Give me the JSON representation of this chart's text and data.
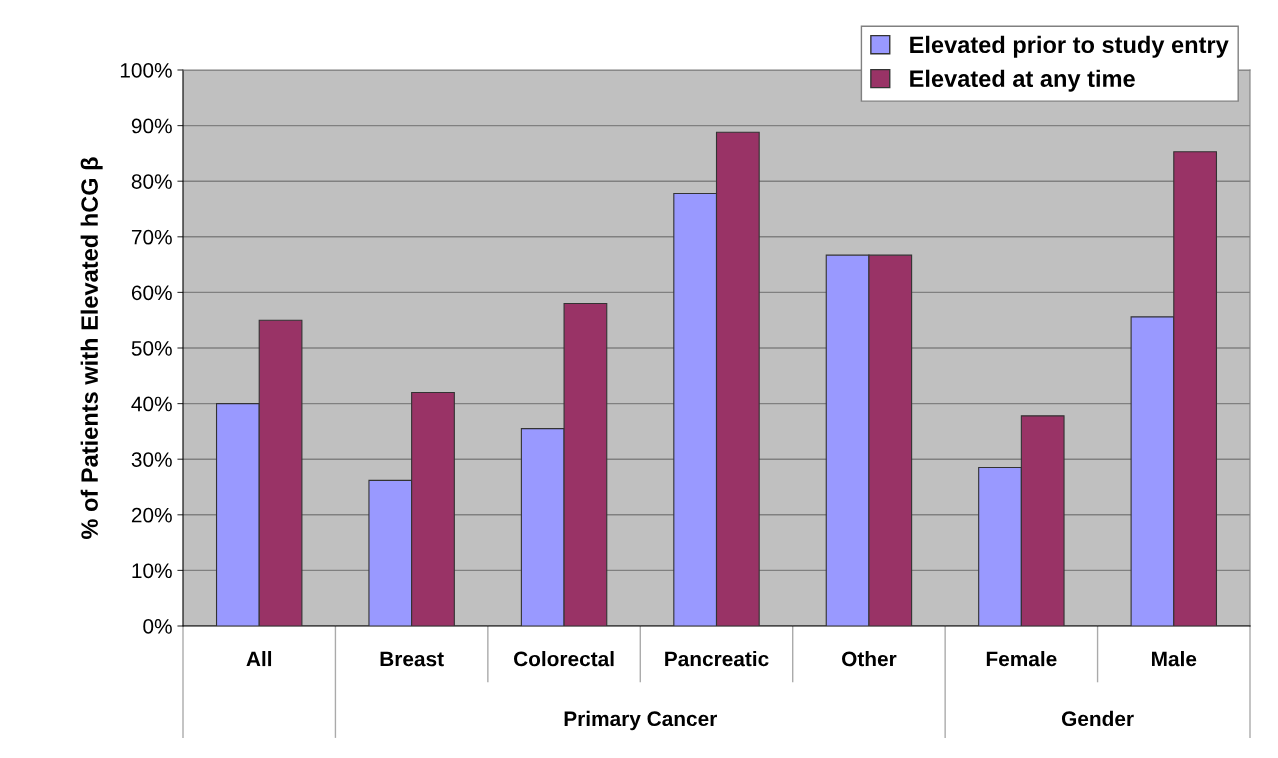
{
  "chart_data": {
    "type": "bar",
    "ylabel": "% of Patients with Elevated hCG β",
    "categories": [
      "All",
      "Breast",
      "Colorectal",
      "Pancreatic",
      "Other",
      "Female",
      "Male"
    ],
    "series": [
      {
        "name": "Elevated prior to study entry",
        "color": "#9999ff",
        "values": [
          40.0,
          26.2,
          35.5,
          77.8,
          66.7,
          28.5,
          55.6
        ]
      },
      {
        "name": "Elevated at any time",
        "color": "#993366",
        "values": [
          55.0,
          42.0,
          58.0,
          88.8,
          66.7,
          37.8,
          85.3
        ]
      }
    ],
    "ylim": [
      0,
      100
    ],
    "yticks": [
      {
        "value": 0,
        "label": "0%"
      },
      {
        "value": 10,
        "label": "10%"
      },
      {
        "value": 20,
        "label": "20%"
      },
      {
        "value": 30,
        "label": "30%"
      },
      {
        "value": 40,
        "label": "40%"
      },
      {
        "value": 50,
        "label": "50%"
      },
      {
        "value": 60,
        "label": "60%"
      },
      {
        "value": 70,
        "label": "70%"
      },
      {
        "value": 80,
        "label": "80%"
      },
      {
        "value": 90,
        "label": "90%"
      },
      {
        "value": 100,
        "label": "100%"
      }
    ],
    "annotations": [
      "Primary Cancer",
      "Gender"
    ],
    "grid": "y",
    "legend": "top right"
  }
}
